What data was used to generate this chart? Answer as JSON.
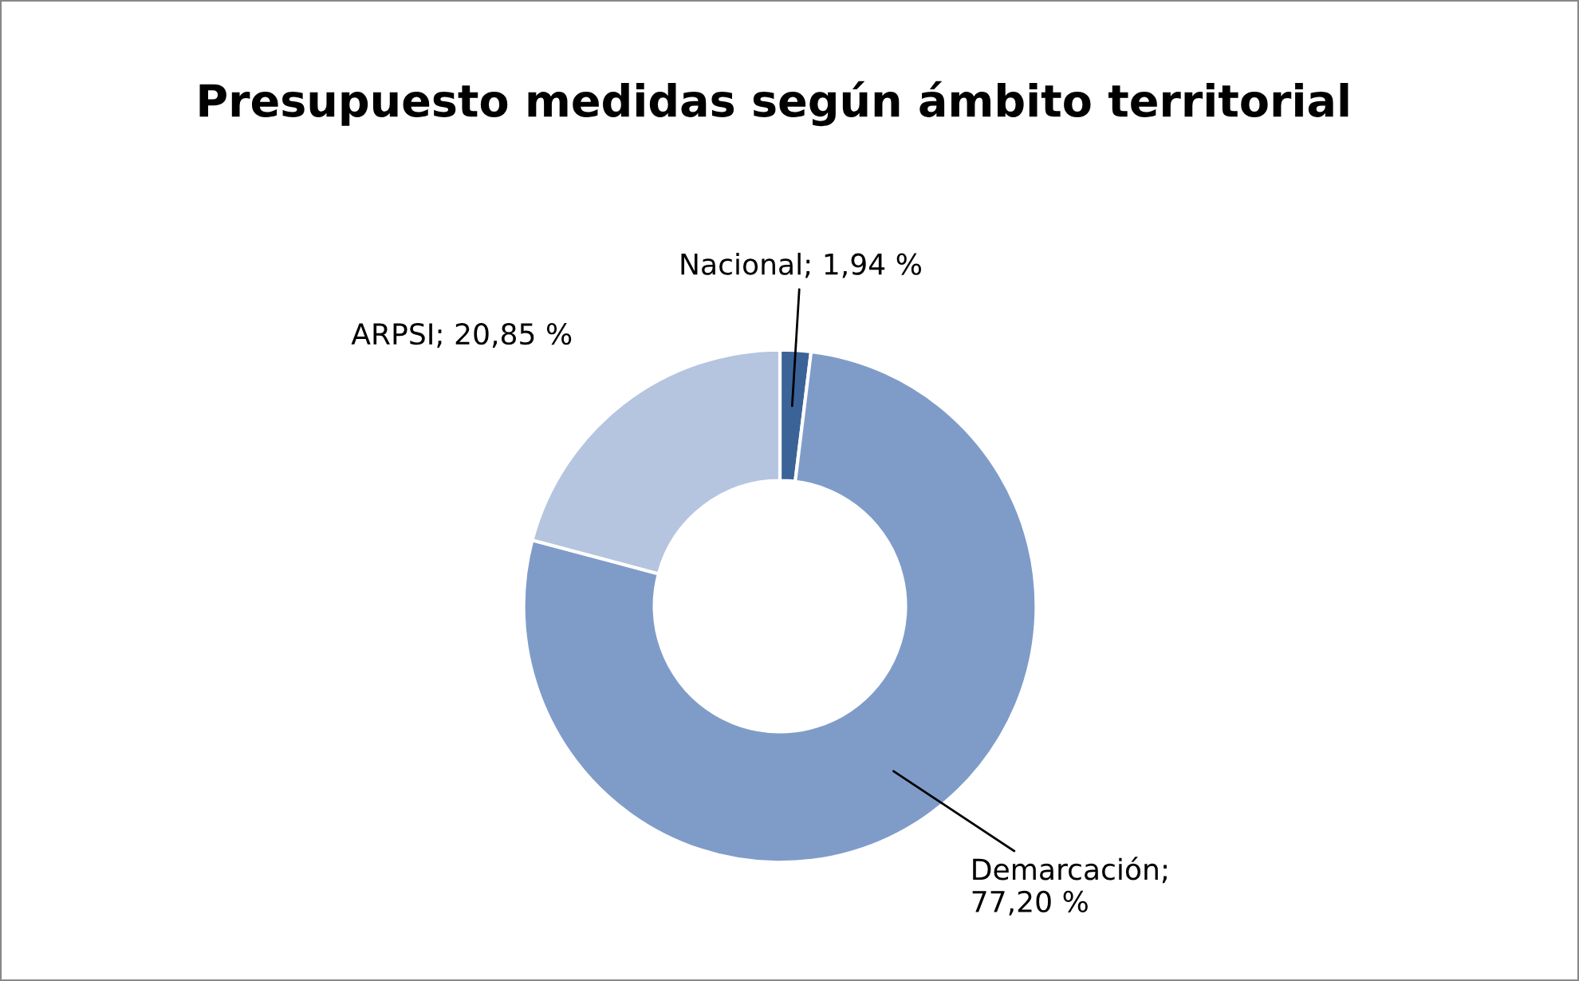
{
  "chart_data": {
    "type": "donut",
    "title": "Presupuesto medidas según ámbito territorial",
    "categories": [
      "Nacional",
      "Demarcación",
      "ARPSI"
    ],
    "values": [
      1.94,
      77.2,
      20.85
    ],
    "colors": [
      "#3c6397",
      "#7f9cc9",
      "#b5c4df"
    ],
    "value_labels": [
      "; 1,94 %",
      ";\n77,20 %",
      "; 20,85 %"
    ],
    "legend": false
  }
}
